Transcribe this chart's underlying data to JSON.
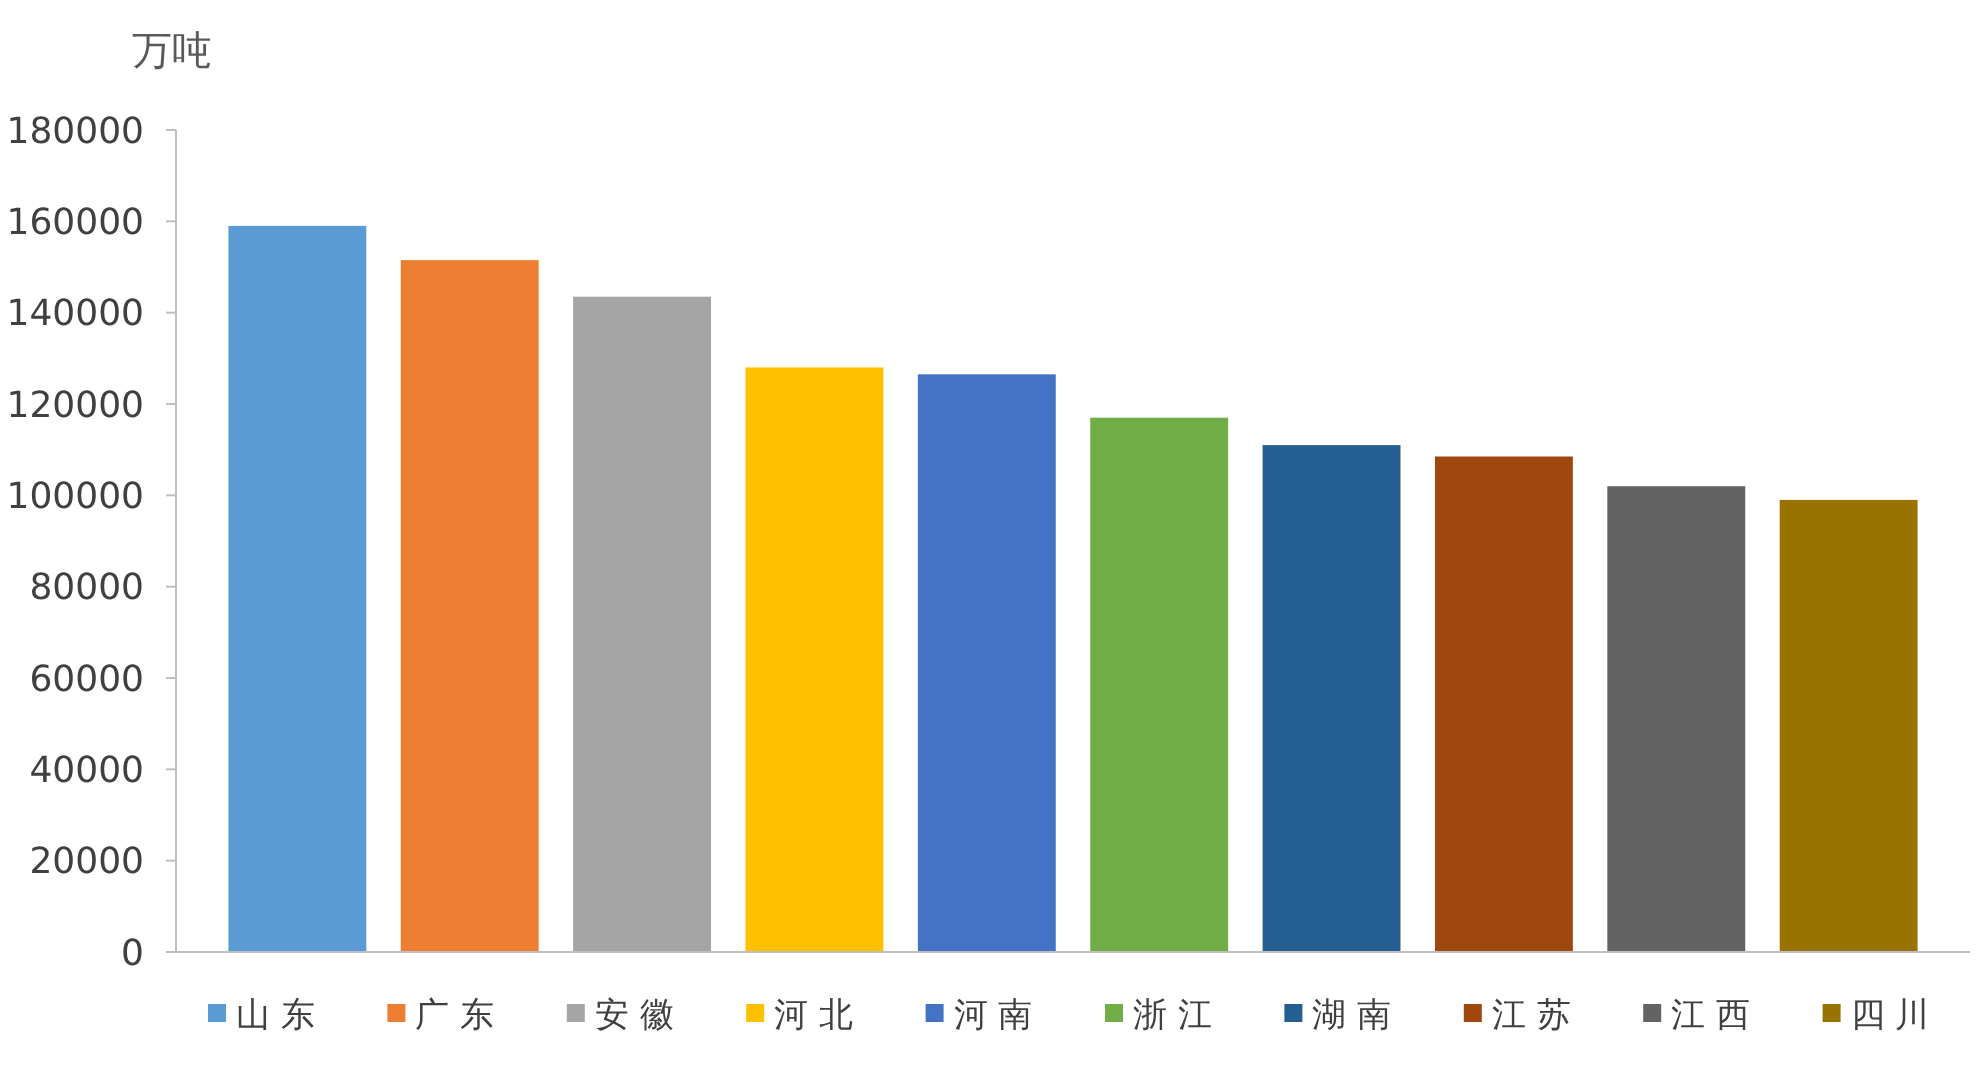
{
  "chart_data": {
    "type": "bar",
    "ylabel": "万吨",
    "categories": [
      null
    ],
    "series": [
      {
        "name": "山 东",
        "color": "#5b9bd5",
        "values": [
          159000
        ]
      },
      {
        "name": "广 东",
        "color": "#ed7d31",
        "values": [
          151500
        ]
      },
      {
        "name": "安 徽",
        "color": "#a5a5a5",
        "values": [
          143500
        ]
      },
      {
        "name": "河 北",
        "color": "#ffc000",
        "values": [
          128000
        ]
      },
      {
        "name": "河 南",
        "color": "#4472c4",
        "values": [
          126500
        ]
      },
      {
        "name": "浙 江",
        "color": "#70ad47",
        "values": [
          117000
        ]
      },
      {
        "name": "湖 南",
        "color": "#255e91",
        "values": [
          111000
        ]
      },
      {
        "name": "江 苏",
        "color": "#9e480e",
        "values": [
          108500
        ]
      },
      {
        "name": "江 西",
        "color": "#636363",
        "values": [
          102000
        ]
      },
      {
        "name": "四 川",
        "color": "#997300",
        "values": [
          99000
        ]
      }
    ],
    "ylim": [
      0,
      180000
    ],
    "yticks": [
      0,
      20000,
      40000,
      60000,
      80000,
      100000,
      120000,
      140000,
      160000,
      180000
    ],
    "legend": "bottom",
    "tick_labels": "y"
  }
}
